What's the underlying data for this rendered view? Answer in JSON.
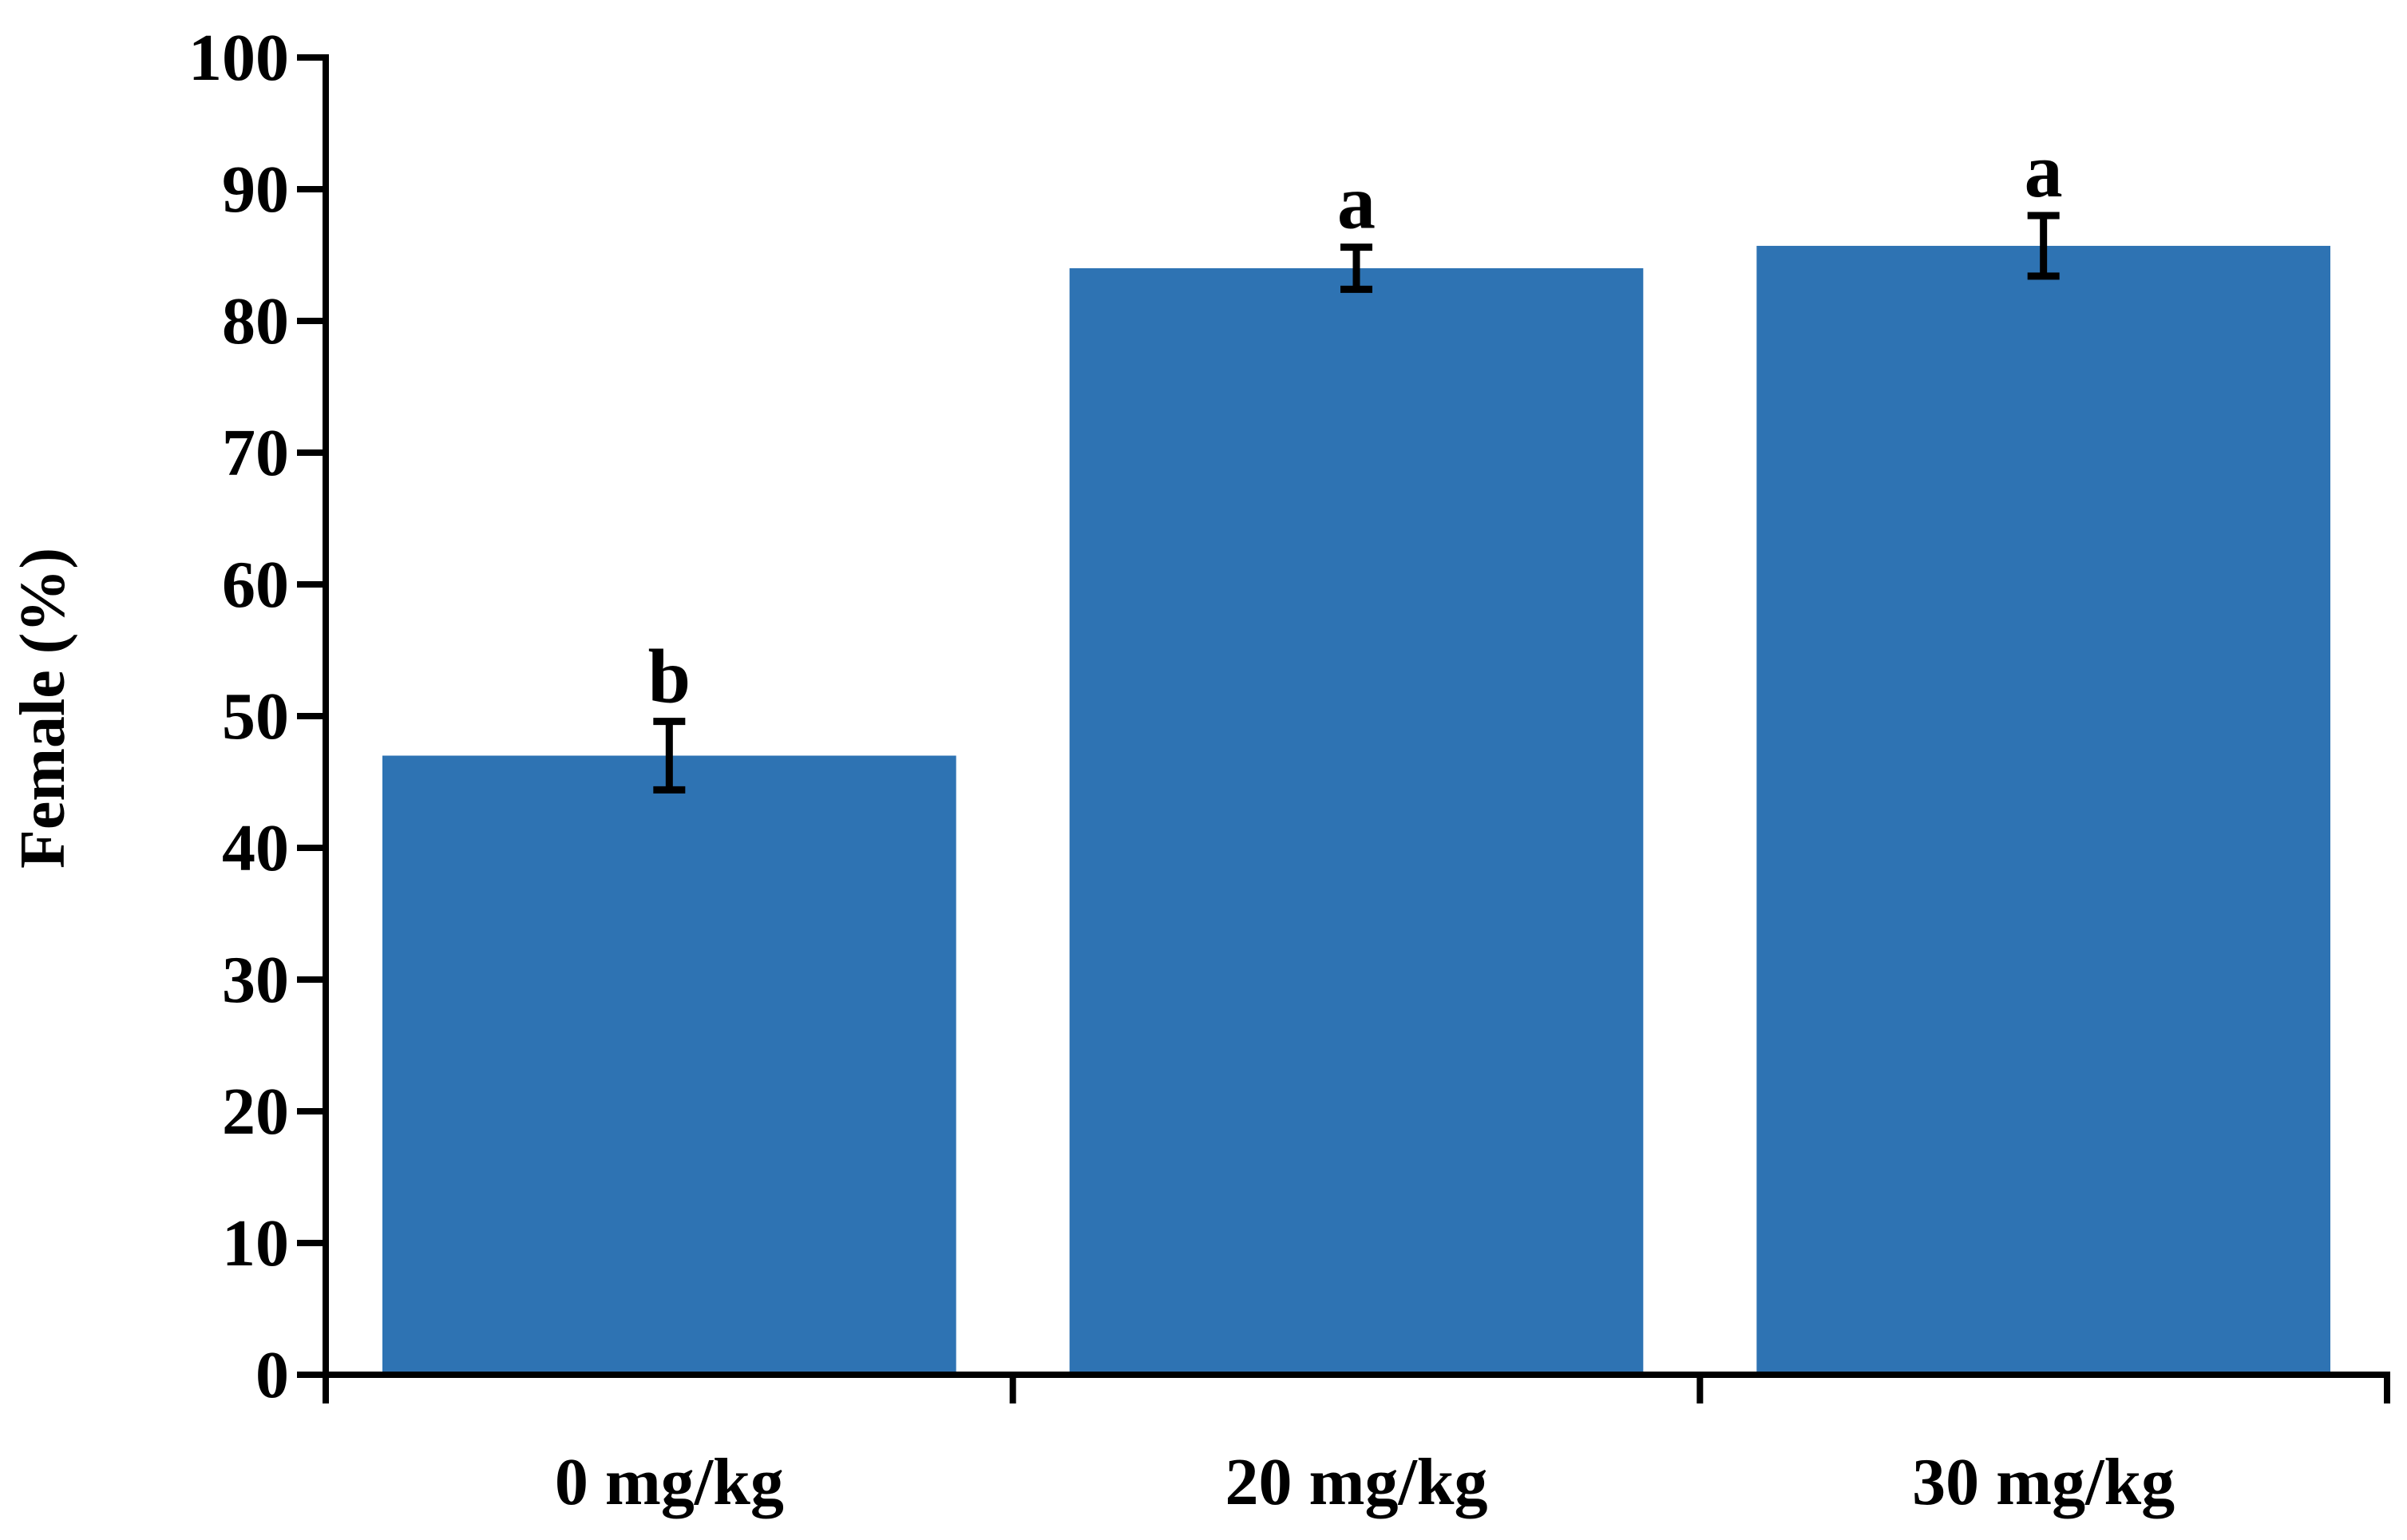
{
  "chart_data": {
    "type": "bar",
    "title": "",
    "xlabel": "",
    "ylabel": "Female (%)",
    "categories": [
      "0 mg/kg",
      "20 mg/kg",
      "30 mg/kg"
    ],
    "series": [
      {
        "values": [
          47.0,
          84.0,
          85.7
        ],
        "error": [
          2.6,
          1.6,
          2.3
        ],
        "significance": [
          "b",
          "a",
          "a"
        ]
      }
    ],
    "ylim": [
      0,
      100
    ],
    "yticks": [
      0,
      10,
      20,
      30,
      40,
      50,
      60,
      70,
      80,
      90,
      100
    ],
    "grid": false,
    "legend": "none",
    "bar_color": "#2E73B3",
    "axis_color": "#000000"
  }
}
